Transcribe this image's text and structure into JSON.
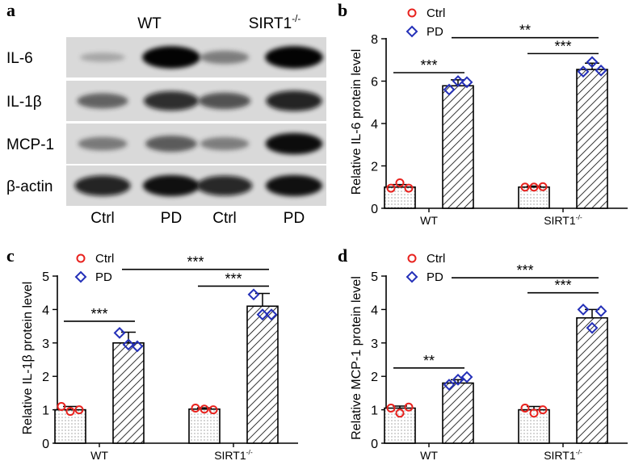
{
  "colors": {
    "ctrl": "#e8221e",
    "pd": "#2430b8",
    "axis": "#000000",
    "blot_bg": "#d9d9d9"
  },
  "western_blot": {
    "panel_letter": "a",
    "group_labels": [
      {
        "text": "WT"
      },
      {
        "text": "SIRT1",
        "sup": "-/-"
      }
    ],
    "row_labels": [
      "IL-6",
      "IL-1β",
      "MCP-1",
      "β-actin"
    ],
    "lane_labels": [
      "Ctrl",
      "PD",
      "Ctrl",
      "PD"
    ],
    "band_intensity": [
      [
        0.08,
        0.98,
        0.35,
        0.98
      ],
      [
        0.5,
        0.78,
        0.58,
        0.85
      ],
      [
        0.38,
        0.55,
        0.35,
        0.92
      ],
      [
        0.85,
        0.9,
        0.82,
        0.9
      ]
    ]
  },
  "chart_data": [
    {
      "type": "bar",
      "panel_letter": "b",
      "title": "",
      "ylabel": "Relative IL-6 protein level",
      "xlabel": "",
      "categories": [
        {
          "text": "WT"
        },
        {
          "text": "SIRT1",
          "sup": "-/-"
        }
      ],
      "ylim": [
        0,
        8
      ],
      "yticks": [
        "0",
        "2",
        "4",
        "6",
        "8"
      ],
      "legend": [
        "Ctrl",
        "PD"
      ],
      "series": [
        {
          "name": "Ctrl",
          "values": [
            1.0,
            1.0
          ],
          "err": [
            0.12,
            0.05
          ],
          "points": [
            [
              0.95,
              1.2,
              0.95
            ],
            [
              1.0,
              1.0,
              1.02
            ]
          ]
        },
        {
          "name": "PD",
          "values": [
            5.78,
            6.55
          ],
          "err": [
            0.28,
            0.3
          ],
          "points": [
            [
              5.6,
              6.0,
              5.95
            ],
            [
              6.45,
              6.9,
              6.5
            ]
          ]
        }
      ],
      "significance": [
        {
          "label": "***",
          "from": [
            0,
            0
          ],
          "to": [
            0,
            1
          ],
          "y": 6.4
        },
        {
          "label": "***",
          "from": [
            1,
            0
          ],
          "to": [
            1,
            1
          ],
          "y": 7.3
        },
        {
          "label": "**",
          "from": [
            0,
            1
          ],
          "to": [
            1,
            1
          ],
          "y": 8.05
        }
      ]
    },
    {
      "type": "bar",
      "panel_letter": "c",
      "title": "",
      "ylabel": "Relative IL-1β protein level",
      "xlabel": "",
      "categories": [
        {
          "text": "WT"
        },
        {
          "text": "SIRT1",
          "sup": "-/-"
        }
      ],
      "ylim": [
        0,
        5
      ],
      "yticks": [
        "0",
        "1",
        "2",
        "3",
        "4",
        "5"
      ],
      "legend": [
        "Ctrl",
        "PD"
      ],
      "series": [
        {
          "name": "Ctrl",
          "values": [
            1.0,
            1.02
          ],
          "err": [
            0.1,
            0.04
          ],
          "points": [
            [
              1.1,
              0.95,
              1.0
            ],
            [
              1.05,
              1.02,
              1.0
            ]
          ]
        },
        {
          "name": "PD",
          "values": [
            3.0,
            4.1
          ],
          "err": [
            0.32,
            0.38
          ],
          "points": [
            [
              3.3,
              2.95,
              2.9
            ],
            [
              4.45,
              3.85,
              3.85
            ]
          ]
        }
      ],
      "significance": [
        {
          "label": "***",
          "from": [
            0,
            0
          ],
          "to": [
            0,
            1
          ],
          "y": 3.65
        },
        {
          "label": "***",
          "from": [
            1,
            0
          ],
          "to": [
            1,
            1
          ],
          "y": 4.7
        },
        {
          "label": "***",
          "from": [
            0,
            1
          ],
          "to": [
            1,
            1
          ],
          "y": 5.2
        }
      ]
    },
    {
      "type": "bar",
      "panel_letter": "d",
      "title": "",
      "ylabel": "Relative MCP-1 protein level",
      "xlabel": "",
      "categories": [
        {
          "text": "WT"
        },
        {
          "text": "SIRT1",
          "sup": "-/-"
        }
      ],
      "ylim": [
        0,
        5
      ],
      "yticks": [
        "0",
        "1",
        "2",
        "3",
        "4",
        "5"
      ],
      "legend": [
        "Ctrl",
        "PD"
      ],
      "series": [
        {
          "name": "Ctrl",
          "values": [
            1.05,
            1.0
          ],
          "err": [
            0.06,
            0.1
          ],
          "points": [
            [
              1.05,
              0.9,
              1.08
            ],
            [
              1.05,
              0.9,
              1.0
            ]
          ]
        },
        {
          "name": "PD",
          "values": [
            1.8,
            3.75
          ],
          "err": [
            0.1,
            0.25
          ],
          "points": [
            [
              1.75,
              1.9,
              1.98
            ],
            [
              4.0,
              3.45,
              3.95
            ]
          ]
        }
      ],
      "significance": [
        {
          "label": "**",
          "from": [
            0,
            0
          ],
          "to": [
            0,
            1
          ],
          "y": 2.25
        },
        {
          "label": "***",
          "from": [
            1,
            0
          ],
          "to": [
            1,
            1
          ],
          "y": 4.5
        },
        {
          "label": "***",
          "from": [
            0,
            1
          ],
          "to": [
            1,
            1
          ],
          "y": 4.95
        }
      ]
    }
  ]
}
